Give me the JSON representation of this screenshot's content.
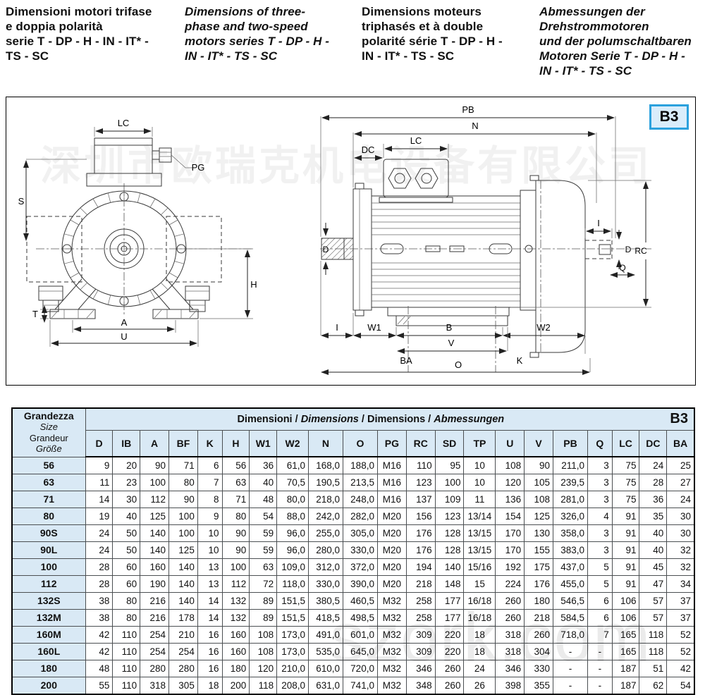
{
  "header": {
    "blocks": [
      {
        "lines": [
          "Dimensioni motori trifase",
          "e doppia polarità",
          "serie T - DP - H - IN - IT* -",
          "TS - SC"
        ]
      },
      {
        "lines": [
          "Dimensions of three-",
          "phase and two-speed",
          "motors series T - DP - H -",
          "IN - IT* - TS - SC"
        ]
      },
      {
        "lines": [
          "Dimensions moteurs",
          "triphasés et à double",
          "polarité série T - DP - H -",
          "IN - IT* - TS - SC"
        ]
      },
      {
        "lines": [
          "Abmessungen der",
          "Drehstrommotoren",
          "und der polumschaltbaren",
          "Motoren Serie T - DP - H -",
          "IN - IT* - TS - SC"
        ]
      }
    ]
  },
  "drawing": {
    "badge": "B3",
    "watermark_top": "深圳市欧瑞克机电设备有限公司",
    "watermark_bottom": "szork.com",
    "labels": {
      "lc": "LC",
      "pg": "PG",
      "s": "S",
      "t": "T",
      "a": "A",
      "u": "U",
      "h": "H",
      "d": "D",
      "pb": "PB",
      "n": "N",
      "dc": "DC",
      "i": "I",
      "rc": "RC",
      "q": "Q",
      "w1": "W1",
      "w2": "W2",
      "b": "B",
      "v": "V",
      "ba": "BA",
      "k": "K",
      "o": "O"
    }
  },
  "table": {
    "size_header": {
      "it": "Grandezza",
      "en": "Size",
      "fr": "Grandeur",
      "de": "Größe"
    },
    "band": {
      "it": "Dimensioni",
      "en": "Dimensions",
      "fr": "Dimensions",
      "de": "Abmessungen",
      "separator": " / ",
      "badge": "B3"
    },
    "columns": [
      "D",
      "IB",
      "A",
      "BF",
      "K",
      "H",
      "W1",
      "W2",
      "N",
      "O",
      "PG",
      "RC",
      "SD",
      "TP",
      "U",
      "V",
      "PB",
      "Q",
      "LC",
      "DC",
      "BA"
    ],
    "center_columns": [
      "PG",
      "TP"
    ],
    "rows": [
      {
        "size": "56",
        "values": [
          "9",
          "20",
          "90",
          "71",
          "6",
          "56",
          "36",
          "61,0",
          "168,0",
          "188,0",
          "M16",
          "110",
          "95",
          "10",
          "108",
          "90",
          "211,0",
          "3",
          "75",
          "24",
          "25"
        ]
      },
      {
        "size": "63",
        "values": [
          "11",
          "23",
          "100",
          "80",
          "7",
          "63",
          "40",
          "70,5",
          "190,5",
          "213,5",
          "M16",
          "123",
          "100",
          "10",
          "120",
          "105",
          "239,5",
          "3",
          "75",
          "28",
          "27"
        ]
      },
      {
        "size": "71",
        "values": [
          "14",
          "30",
          "112",
          "90",
          "8",
          "71",
          "48",
          "80,0",
          "218,0",
          "248,0",
          "M16",
          "137",
          "109",
          "11",
          "136",
          "108",
          "281,0",
          "3",
          "75",
          "36",
          "24"
        ]
      },
      {
        "size": "80",
        "values": [
          "19",
          "40",
          "125",
          "100",
          "9",
          "80",
          "54",
          "88,0",
          "242,0",
          "282,0",
          "M20",
          "156",
          "123",
          "13/14",
          "154",
          "125",
          "326,0",
          "4",
          "91",
          "35",
          "30"
        ]
      },
      {
        "size": "90S",
        "values": [
          "24",
          "50",
          "140",
          "100",
          "10",
          "90",
          "59",
          "96,0",
          "255,0",
          "305,0",
          "M20",
          "176",
          "128",
          "13/15",
          "170",
          "130",
          "358,0",
          "3",
          "91",
          "40",
          "30"
        ]
      },
      {
        "size": "90L",
        "values": [
          "24",
          "50",
          "140",
          "125",
          "10",
          "90",
          "59",
          "96,0",
          "280,0",
          "330,0",
          "M20",
          "176",
          "128",
          "13/15",
          "170",
          "155",
          "383,0",
          "3",
          "91",
          "40",
          "32"
        ]
      },
      {
        "size": "100",
        "values": [
          "28",
          "60",
          "160",
          "140",
          "13",
          "100",
          "63",
          "109,0",
          "312,0",
          "372,0",
          "M20",
          "194",
          "140",
          "15/16",
          "192",
          "175",
          "437,0",
          "5",
          "91",
          "45",
          "32"
        ]
      },
      {
        "size": "112",
        "values": [
          "28",
          "60",
          "190",
          "140",
          "13",
          "112",
          "72",
          "118,0",
          "330,0",
          "390,0",
          "M20",
          "218",
          "148",
          "15",
          "224",
          "176",
          "455,0",
          "5",
          "91",
          "47",
          "34"
        ]
      },
      {
        "size": "132S",
        "values": [
          "38",
          "80",
          "216",
          "140",
          "14",
          "132",
          "89",
          "151,5",
          "380,5",
          "460,5",
          "M32",
          "258",
          "177",
          "16/18",
          "260",
          "180",
          "546,5",
          "6",
          "106",
          "57",
          "37"
        ]
      },
      {
        "size": "132M",
        "values": [
          "38",
          "80",
          "216",
          "178",
          "14",
          "132",
          "89",
          "151,5",
          "418,5",
          "498,5",
          "M32",
          "258",
          "177",
          "16/18",
          "260",
          "218",
          "584,5",
          "6",
          "106",
          "57",
          "37"
        ]
      },
      {
        "size": "160M",
        "values": [
          "42",
          "110",
          "254",
          "210",
          "16",
          "160",
          "108",
          "173,0",
          "491,0",
          "601,0",
          "M32",
          "309",
          "220",
          "18",
          "318",
          "260",
          "718,0",
          "7",
          "165",
          "118",
          "52"
        ]
      },
      {
        "size": "160L",
        "values": [
          "42",
          "110",
          "254",
          "254",
          "16",
          "160",
          "108",
          "173,0",
          "535,0",
          "645,0",
          "M32",
          "309",
          "220",
          "18",
          "318",
          "304",
          "-",
          "-",
          "165",
          "118",
          "52"
        ]
      },
      {
        "size": "180",
        "values": [
          "48",
          "110",
          "280",
          "280",
          "16",
          "180",
          "120",
          "210,0",
          "610,0",
          "720,0",
          "M32",
          "346",
          "260",
          "24",
          "346",
          "330",
          "-",
          "-",
          "187",
          "51",
          "42"
        ]
      },
      {
        "size": "200",
        "values": [
          "55",
          "110",
          "318",
          "305",
          "18",
          "200",
          "118",
          "208,0",
          "631,0",
          "741,0",
          "M32",
          "348",
          "260",
          "26",
          "398",
          "355",
          "-",
          "-",
          "187",
          "62",
          "54"
        ]
      }
    ]
  }
}
